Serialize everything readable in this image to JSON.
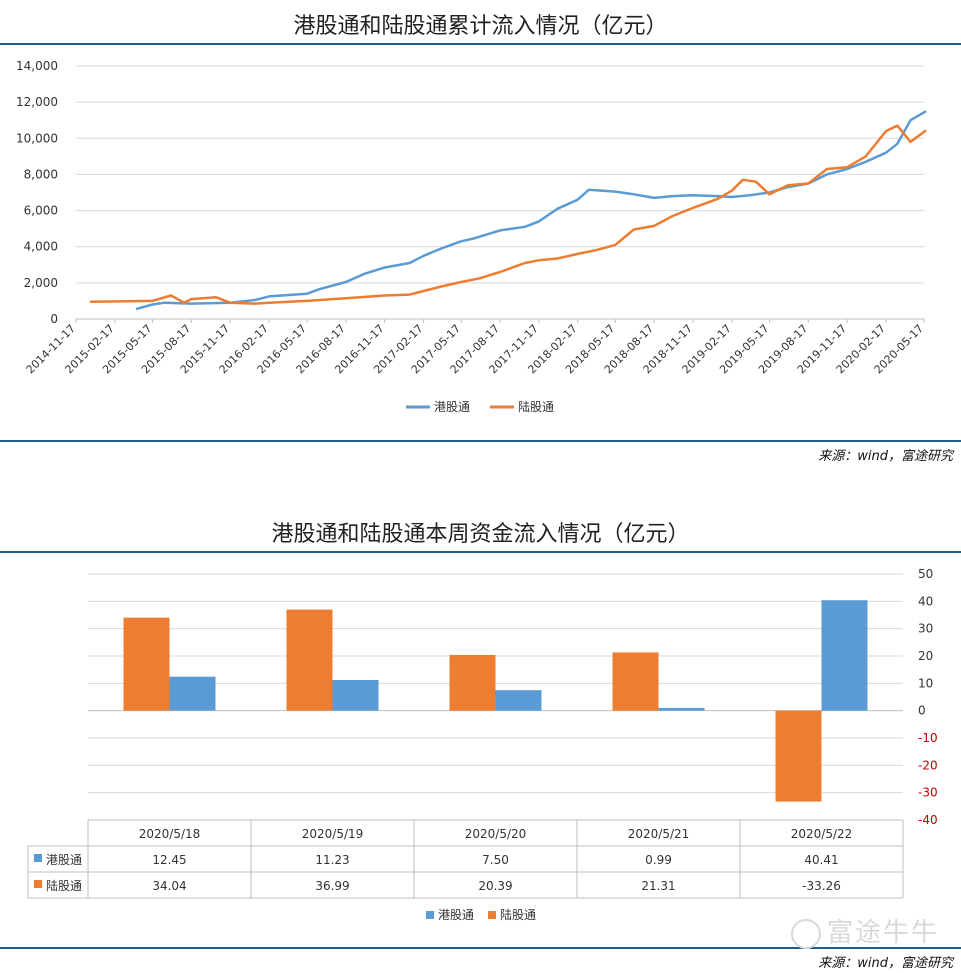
{
  "top_chart": {
    "title": "港股通和陆股通累计流入情况（亿元）",
    "source": "来源：wind，富途研究"
  },
  "bottom_chart": {
    "title": "港股通和陆股通本周资金流入情况（亿元）",
    "source": "来源：wind，富途研究"
  },
  "watermark": "富途牛牛",
  "chart_data": [
    {
      "type": "line",
      "title": "港股通和陆股通累计流入情况（亿元）",
      "x_ticks": [
        "2014-11-17",
        "2015-02-17",
        "2015-05-17",
        "2015-08-17",
        "2015-11-17",
        "2016-02-17",
        "2016-05-17",
        "2016-08-17",
        "2016-11-17",
        "2017-02-17",
        "2017-05-17",
        "2017-08-17",
        "2017-11-17",
        "2018-02-17",
        "2018-05-17",
        "2018-08-17",
        "2018-11-17",
        "2019-02-17",
        "2019-05-17",
        "2019-08-17",
        "2019-11-17",
        "2020-02-17",
        "2020-05-17"
      ],
      "y_ticks": [
        "0",
        "2,000",
        "4,000",
        "6,000",
        "8,000",
        "10,000",
        "12,000",
        "14,000"
      ],
      "ylim": [
        0,
        14000
      ],
      "legend_position": "bottom",
      "series": [
        {
          "name": "港股通",
          "color": "#5b9bd5",
          "x": [
            "2015-04-08",
            "2015-05-17",
            "2015-06-15",
            "2015-08-17",
            "2015-11-17",
            "2016-01-15",
            "2016-02-17",
            "2016-05-17",
            "2016-06-15",
            "2016-08-17",
            "2016-09-30",
            "2016-11-17",
            "2017-01-15",
            "2017-02-17",
            "2017-03-31",
            "2017-05-17",
            "2017-06-15",
            "2017-08-17",
            "2017-10-15",
            "2017-11-17",
            "2017-12-31",
            "2018-02-17",
            "2018-03-15",
            "2018-05-17",
            "2018-06-30",
            "2018-08-17",
            "2018-09-30",
            "2018-11-17",
            "2019-01-15",
            "2019-02-17",
            "2019-03-31",
            "2019-05-17",
            "2019-06-30",
            "2019-08-17",
            "2019-09-30",
            "2019-11-17",
            "2019-12-31",
            "2020-02-17",
            "2020-03-15",
            "2020-04-15",
            "2020-05-22"
          ],
          "y": [
            550,
            800,
            900,
            850,
            900,
            1050,
            1250,
            1400,
            1650,
            2050,
            2500,
            2850,
            3100,
            3500,
            3900,
            4300,
            4450,
            4900,
            5100,
            5400,
            6100,
            6600,
            7150,
            7050,
            6900,
            6700,
            6800,
            6850,
            6800,
            6750,
            6850,
            7000,
            7300,
            7500,
            8000,
            8300,
            8700,
            9200,
            9700,
            11000,
            11500
          ]
        },
        {
          "name": "陆股通",
          "color": "#ed7d31",
          "x": [
            "2014-12-20",
            "2015-05-17",
            "2015-06-30",
            "2015-07-31",
            "2015-08-17",
            "2015-10-15",
            "2015-11-17",
            "2016-01-15",
            "2016-02-17",
            "2016-05-17",
            "2016-08-17",
            "2016-11-17",
            "2017-01-15",
            "2017-02-17",
            "2017-03-31",
            "2017-05-17",
            "2017-06-30",
            "2017-08-17",
            "2017-10-15",
            "2017-11-17",
            "2017-12-31",
            "2018-02-17",
            "2018-03-31",
            "2018-05-17",
            "2018-06-30",
            "2018-08-17",
            "2018-09-30",
            "2018-11-17",
            "2019-01-15",
            "2019-02-17",
            "2019-03-15",
            "2019-04-15",
            "2019-05-17",
            "2019-06-30",
            "2019-08-17",
            "2019-09-30",
            "2019-11-17",
            "2019-12-31",
            "2020-02-17",
            "2020-03-15",
            "2020-04-15",
            "2020-05-22"
          ],
          "y": [
            950,
            1000,
            1300,
            900,
            1100,
            1200,
            900,
            850,
            900,
            1000,
            1150,
            1300,
            1350,
            1550,
            1800,
            2050,
            2250,
            2600,
            3100,
            3250,
            3350,
            3600,
            3800,
            4100,
            4950,
            5150,
            5700,
            6150,
            6650,
            7100,
            7700,
            7600,
            6900,
            7400,
            7500,
            8300,
            8400,
            9000,
            10400,
            10700,
            9800,
            10450
          ]
        }
      ]
    },
    {
      "type": "bar",
      "title": "港股通和陆股通本周资金流入情况（亿元）",
      "categories": [
        "2020/5/18",
        "2020/5/19",
        "2020/5/20",
        "2020/5/21",
        "2020/5/22"
      ],
      "y_ticks": [
        "50",
        "40",
        "30",
        "20",
        "10",
        "0",
        "-10",
        "-20",
        "-30",
        "-40"
      ],
      "ylim": [
        -40,
        50
      ],
      "legend_position": "bottom",
      "series": [
        {
          "name": "港股通",
          "color": "#5b9bd5",
          "values": [
            12.45,
            11.23,
            7.5,
            0.99,
            40.41
          ],
          "labels": [
            "12.45",
            "11.23",
            "7.50",
            "0.99",
            "40.41"
          ]
        },
        {
          "name": "陆股通",
          "color": "#ed7d31",
          "values": [
            34.04,
            36.99,
            20.39,
            21.31,
            -33.26
          ],
          "labels": [
            "34.04",
            "36.99",
            "20.39",
            "21.31",
            "-33.26"
          ]
        }
      ]
    }
  ]
}
